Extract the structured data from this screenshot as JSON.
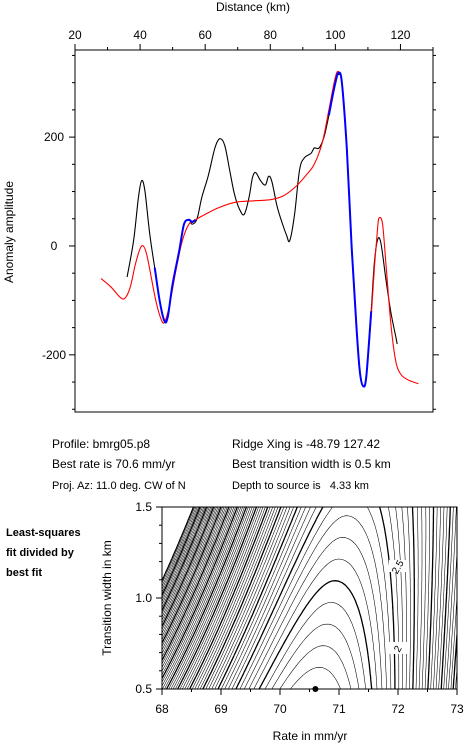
{
  "colors": {
    "observed": "#000000",
    "model": "#ff0000",
    "fit": "#0000ff"
  },
  "info": {
    "profile": "Profile: bmrg05.p8",
    "best_rate": "Best rate is 70.6 mm/yr",
    "proj_az": "Proj. Az: 11.0 deg. CW of N",
    "ridge_xing": "Ridge Xing is -48.79 127.42",
    "transition": "Best transition width is 0.5 km",
    "depth": "Depth to source is   4.33 km"
  },
  "side_caption": [
    "Least-squares",
    "fit divided by",
    "best fit"
  ],
  "chart_data": [
    {
      "type": "line",
      "xlabel": "Distance (km)",
      "ylabel": "Anomaly amplitude",
      "xlim": [
        20,
        130
      ],
      "ylim": [
        -305,
        360
      ],
      "xticks": [
        20,
        40,
        60,
        80,
        100,
        120
      ],
      "yticks": [
        -200,
        0,
        200
      ],
      "grid": false,
      "series": [
        {
          "key": "observed",
          "points": [
            [
              36,
              -57
            ],
            [
              38,
              10
            ],
            [
              39.5,
              90
            ],
            [
              40.5,
              120
            ],
            [
              41.5,
              100
            ],
            [
              43,
              20
            ],
            [
              44.5,
              -40
            ],
            [
              46,
              -100
            ],
            [
              47.5,
              -138
            ],
            [
              48.5,
              -130
            ],
            [
              50,
              -70
            ],
            [
              52,
              -10
            ],
            [
              53.5,
              40
            ],
            [
              55,
              48
            ],
            [
              56,
              40
            ],
            [
              57.5,
              50
            ],
            [
              59,
              90
            ],
            [
              61,
              130
            ],
            [
              63,
              180
            ],
            [
              64.5,
              197
            ],
            [
              66,
              185
            ],
            [
              67.5,
              140
            ],
            [
              69,
              95
            ],
            [
              70.5,
              68
            ],
            [
              72,
              58
            ],
            [
              73.5,
              90
            ],
            [
              74.5,
              125
            ],
            [
              75.5,
              135
            ],
            [
              77,
              120
            ],
            [
              78.5,
              112
            ],
            [
              79.5,
              128
            ],
            [
              80.5,
              118
            ],
            [
              82,
              75
            ],
            [
              83.5,
              45
            ],
            [
              85,
              20
            ],
            [
              86,
              10
            ],
            [
              87.5,
              60
            ],
            [
              89,
              140
            ],
            [
              90.5,
              162
            ],
            [
              92.5,
              170
            ],
            [
              93.5,
              180
            ],
            [
              95,
              180
            ],
            [
              96.5,
              200
            ],
            [
              98,
              240
            ],
            [
              100,
              300
            ],
            [
              101,
              315
            ],
            [
              102,
              300
            ],
            [
              103.5,
              180
            ],
            [
              105,
              0
            ],
            [
              106.5,
              -150
            ],
            [
              107.5,
              -230
            ],
            [
              108.5,
              -257
            ],
            [
              109.5,
              -240
            ],
            [
              111,
              -120
            ],
            [
              112,
              -30
            ],
            [
              113,
              12
            ],
            [
              114,
              5
            ],
            [
              115.5,
              -60
            ],
            [
              117,
              -120
            ],
            [
              118.5,
              -165
            ],
            [
              119,
              -180
            ]
          ]
        },
        {
          "key": "model",
          "points": [
            [
              28,
              -60
            ],
            [
              31,
              -75
            ],
            [
              34,
              -95
            ],
            [
              35.5,
              -95
            ],
            [
              37,
              -75
            ],
            [
              38.5,
              -35
            ],
            [
              40,
              -5
            ],
            [
              41,
              0
            ],
            [
              42,
              -15
            ],
            [
              43.5,
              -60
            ],
            [
              45,
              -105
            ],
            [
              46.5,
              -135
            ],
            [
              47.5,
              -140
            ],
            [
              49,
              -110
            ],
            [
              51,
              -45
            ],
            [
              53,
              10
            ],
            [
              55,
              40
            ],
            [
              57,
              48
            ],
            [
              60,
              58
            ],
            [
              64,
              70
            ],
            [
              69,
              80
            ],
            [
              75,
              83
            ],
            [
              80,
              85
            ],
            [
              84,
              92
            ],
            [
              88,
              110
            ],
            [
              91,
              130
            ],
            [
              93.5,
              150
            ],
            [
              96,
              190
            ],
            [
              98,
              250
            ],
            [
              100,
              310
            ],
            [
              101,
              320
            ],
            [
              102,
              300
            ],
            [
              103.5,
              180
            ],
            [
              105,
              0
            ],
            [
              106.5,
              -150
            ],
            [
              107.5,
              -230
            ],
            [
              108.5,
              -258
            ],
            [
              109.5,
              -240
            ],
            [
              111,
              -130
            ],
            [
              112,
              -40
            ],
            [
              113,
              35
            ],
            [
              113.5,
              52
            ],
            [
              114.5,
              40
            ],
            [
              115.5,
              -30
            ],
            [
              117,
              -140
            ],
            [
              118.5,
              -210
            ],
            [
              120,
              -235
            ],
            [
              122,
              -245
            ],
            [
              124,
              -250
            ],
            [
              125.5,
              -253
            ]
          ]
        },
        {
          "key": "fit",
          "points": [
            [
              44.5,
              -40
            ],
            [
              46,
              -100
            ],
            [
              47.5,
              -138
            ],
            [
              48.5,
              -130
            ],
            [
              50,
              -70
            ],
            [
              52,
              -10
            ],
            [
              53.5,
              40
            ],
            [
              55,
              48
            ],
            [
              56,
              44
            ],
            [
              57,
              48
            ]
          ]
        },
        {
          "key": "fit",
          "points": [
            [
              98,
              240
            ],
            [
              100,
              300
            ],
            [
              101,
              318
            ],
            [
              102,
              300
            ],
            [
              103.5,
              180
            ],
            [
              105,
              0
            ],
            [
              106.5,
              -150
            ],
            [
              107.5,
              -230
            ],
            [
              108.5,
              -257
            ],
            [
              109.5,
              -240
            ],
            [
              111,
              -120
            ]
          ]
        }
      ]
    },
    {
      "type": "contour",
      "xlabel": "Rate in mm/yr",
      "ylabel": "Transition width in km",
      "xlim": [
        68,
        73
      ],
      "ylim": [
        0.5,
        1.5
      ],
      "xticks": [
        68,
        69,
        70,
        71,
        72,
        73
      ],
      "yticks": [
        0.5,
        1.0,
        1.5
      ],
      "minimum": {
        "rate": 70.6,
        "width": 0.5
      },
      "contour_labels": [
        {
          "text": "2.5",
          "rate": 72.0,
          "width": 1.17
        },
        {
          "text": "2",
          "rate": 72.0,
          "width": 0.72
        }
      ]
    }
  ]
}
